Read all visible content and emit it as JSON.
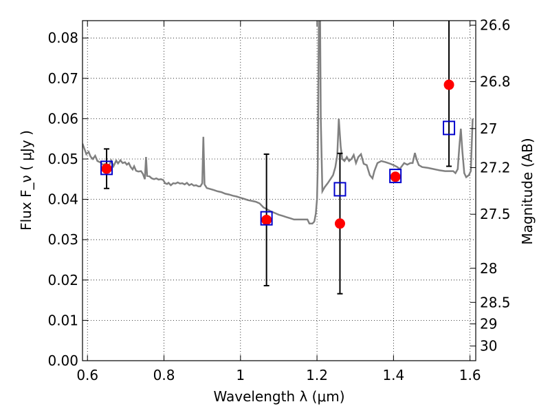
{
  "chart_data": {
    "type": "scatter",
    "title": "",
    "xlabel": "Wavelength  λ (μm)",
    "ylabel": "Flux  F_ν  ( μJy )",
    "ylabel_right": "Magnitude (AB)",
    "xlim": [
      0.587,
      1.615
    ],
    "ylim": [
      0.0,
      0.0843
    ],
    "x_ticks": [
      0.6,
      0.8,
      1.0,
      1.2,
      1.4,
      1.6
    ],
    "x_tick_labels": [
      "0.6",
      "0.8",
      "1",
      "1.2",
      "1.4",
      "1.6"
    ],
    "y_ticks": [
      0.0,
      0.01,
      0.02,
      0.03,
      0.04,
      0.05,
      0.06,
      0.07,
      0.08
    ],
    "y_tick_labels": [
      "0.00",
      "0.01",
      "0.02",
      "0.03",
      "0.04",
      "0.05",
      "0.06",
      "0.07",
      "0.08"
    ],
    "right_ticks": [
      {
        "mag": 26.6,
        "label": "26.6"
      },
      {
        "mag": 26.8,
        "label": "26.8"
      },
      {
        "mag": 27.0,
        "label": "27"
      },
      {
        "mag": 27.2,
        "label": "27.2"
      },
      {
        "mag": 27.5,
        "label": "27.5"
      },
      {
        "mag": 28.0,
        "label": "28"
      },
      {
        "mag": 28.5,
        "label": "28.5"
      },
      {
        "mag": 29.0,
        "label": "29"
      },
      {
        "mag": 30.0,
        "label": "30"
      }
    ],
    "grid": true,
    "colors": {
      "observed": "#ff0000",
      "model_bands": "#0000cc",
      "sed": "#808080",
      "errorbar": "#000000"
    },
    "series": [
      {
        "kind": "line",
        "points": [
          [
            0.587,
            0.0538
          ],
          [
            0.592,
            0.0525
          ],
          [
            0.597,
            0.0512
          ],
          [
            0.603,
            0.0518
          ],
          [
            0.608,
            0.0506
          ],
          [
            0.614,
            0.05
          ],
          [
            0.62,
            0.0508
          ],
          [
            0.626,
            0.0495
          ],
          [
            0.633,
            0.0492
          ],
          [
            0.64,
            0.0486
          ],
          [
            0.648,
            0.0488
          ],
          [
            0.655,
            0.0479
          ],
          [
            0.662,
            0.0496
          ],
          [
            0.668,
            0.0482
          ],
          [
            0.675,
            0.0496
          ],
          [
            0.68,
            0.0489
          ],
          [
            0.686,
            0.0497
          ],
          [
            0.692,
            0.049
          ],
          [
            0.698,
            0.0492
          ],
          [
            0.703,
            0.0486
          ],
          [
            0.708,
            0.049
          ],
          [
            0.713,
            0.048
          ],
          [
            0.718,
            0.0474
          ],
          [
            0.722,
            0.0482
          ],
          [
            0.727,
            0.0471
          ],
          [
            0.733,
            0.0469
          ],
          [
            0.74,
            0.047
          ],
          [
            0.745,
            0.0463
          ],
          [
            0.75,
            0.045
          ],
          [
            0.753,
            0.0505
          ],
          [
            0.756,
            0.0458
          ],
          [
            0.762,
            0.0457
          ],
          [
            0.768,
            0.0452
          ],
          [
            0.774,
            0.045
          ],
          [
            0.78,
            0.0452
          ],
          [
            0.786,
            0.0449
          ],
          [
            0.792,
            0.045
          ],
          [
            0.798,
            0.0448
          ],
          [
            0.803,
            0.044
          ],
          [
            0.808,
            0.0438
          ],
          [
            0.812,
            0.0441
          ],
          [
            0.818,
            0.0435
          ],
          [
            0.824,
            0.044
          ],
          [
            0.83,
            0.0439
          ],
          [
            0.836,
            0.0442
          ],
          [
            0.842,
            0.0439
          ],
          [
            0.848,
            0.044
          ],
          [
            0.854,
            0.0437
          ],
          [
            0.86,
            0.0441
          ],
          [
            0.866,
            0.0435
          ],
          [
            0.872,
            0.0438
          ],
          [
            0.878,
            0.0434
          ],
          [
            0.884,
            0.0435
          ],
          [
            0.89,
            0.0432
          ],
          [
            0.895,
            0.0432
          ],
          [
            0.9,
            0.044
          ],
          [
            0.903,
            0.0555
          ],
          [
            0.906,
            0.0437
          ],
          [
            0.912,
            0.0428
          ],
          [
            0.92,
            0.0426
          ],
          [
            0.93,
            0.0423
          ],
          [
            0.94,
            0.042
          ],
          [
            0.95,
            0.0418
          ],
          [
            0.96,
            0.0414
          ],
          [
            0.97,
            0.0412
          ],
          [
            0.98,
            0.0409
          ],
          [
            0.99,
            0.0407
          ],
          [
            1.0,
            0.0404
          ],
          [
            1.01,
            0.0401
          ],
          [
            1.02,
            0.0398
          ],
          [
            1.03,
            0.0396
          ],
          [
            1.04,
            0.0394
          ],
          [
            1.05,
            0.039
          ],
          [
            1.06,
            0.038
          ],
          [
            1.07,
            0.0375
          ],
          [
            1.08,
            0.037
          ],
          [
            1.09,
            0.0366
          ],
          [
            1.1,
            0.0362
          ],
          [
            1.11,
            0.0359
          ],
          [
            1.12,
            0.0356
          ],
          [
            1.13,
            0.0353
          ],
          [
            1.14,
            0.035
          ],
          [
            1.15,
            0.035
          ],
          [
            1.16,
            0.035
          ],
          [
            1.17,
            0.035
          ],
          [
            1.175,
            0.035
          ],
          [
            1.18,
            0.034
          ],
          [
            1.188,
            0.034
          ],
          [
            1.193,
            0.0345
          ],
          [
            1.197,
            0.0365
          ],
          [
            1.2,
            0.04
          ],
          [
            1.202,
            0.048
          ],
          [
            1.205,
            0.087
          ],
          [
            1.208,
            0.087
          ],
          [
            1.21,
            0.06
          ],
          [
            1.214,
            0.042
          ],
          [
            1.22,
            0.043
          ],
          [
            1.228,
            0.044
          ],
          [
            1.235,
            0.045
          ],
          [
            1.242,
            0.046
          ],
          [
            1.248,
            0.048
          ],
          [
            1.253,
            0.051
          ],
          [
            1.257,
            0.06
          ],
          [
            1.262,
            0.053
          ],
          [
            1.266,
            0.05
          ],
          [
            1.272,
            0.0495
          ],
          [
            1.278,
            0.0505
          ],
          [
            1.284,
            0.0495
          ],
          [
            1.29,
            0.05
          ],
          [
            1.296,
            0.051
          ],
          [
            1.302,
            0.049
          ],
          [
            1.308,
            0.0505
          ],
          [
            1.315,
            0.0512
          ],
          [
            1.322,
            0.0488
          ],
          [
            1.33,
            0.0485
          ],
          [
            1.338,
            0.046
          ],
          [
            1.345,
            0.0452
          ],
          [
            1.35,
            0.047
          ],
          [
            1.358,
            0.049
          ],
          [
            1.368,
            0.0495
          ],
          [
            1.38,
            0.0492
          ],
          [
            1.392,
            0.0488
          ],
          [
            1.402,
            0.0484
          ],
          [
            1.41,
            0.048
          ],
          [
            1.416,
            0.0475
          ],
          [
            1.42,
            0.048
          ],
          [
            1.428,
            0.049
          ],
          [
            1.436,
            0.0486
          ],
          [
            1.444,
            0.049
          ],
          [
            1.45,
            0.049
          ],
          [
            1.456,
            0.0515
          ],
          [
            1.46,
            0.05
          ],
          [
            1.466,
            0.0485
          ],
          [
            1.475,
            0.048
          ],
          [
            1.49,
            0.0478
          ],
          [
            1.505,
            0.0475
          ],
          [
            1.52,
            0.0472
          ],
          [
            1.535,
            0.047
          ],
          [
            1.548,
            0.047
          ],
          [
            1.556,
            0.047
          ],
          [
            1.562,
            0.0465
          ],
          [
            1.568,
            0.0475
          ],
          [
            1.572,
            0.053
          ],
          [
            1.576,
            0.0575
          ],
          [
            1.58,
            0.052
          ],
          [
            1.585,
            0.0465
          ],
          [
            1.59,
            0.0455
          ],
          [
            1.597,
            0.046
          ],
          [
            1.602,
            0.047
          ],
          [
            1.607,
            0.06
          ]
        ]
      },
      {
        "kind": "scatter",
        "marker": "circle",
        "points": [
          {
            "x": 0.65,
            "y": 0.0476,
            "yerr": 0.0049
          },
          {
            "x": 1.068,
            "y": 0.0349,
            "yerr": 0.0163
          },
          {
            "x": 1.26,
            "y": 0.034,
            "yerr": 0.0174
          },
          {
            "x": 1.405,
            "y": 0.0456,
            "yerr": 0.0
          },
          {
            "x": 1.545,
            "y": 0.0684,
            "yerr": 0.0202
          }
        ]
      },
      {
        "kind": "scatter",
        "marker": "square",
        "points": [
          {
            "x": 0.65,
            "y": 0.0478
          },
          {
            "x": 1.068,
            "y": 0.0353
          },
          {
            "x": 1.26,
            "y": 0.0425
          },
          {
            "x": 1.405,
            "y": 0.0458
          },
          {
            "x": 1.545,
            "y": 0.0577
          }
        ]
      }
    ]
  }
}
